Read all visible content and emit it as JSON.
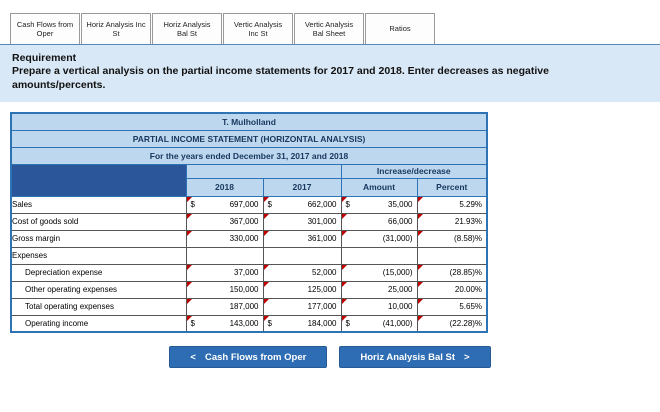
{
  "tabs": [
    "Cash Flows from Oper",
    "Horiz Analysis Inc St",
    "Horiz Analysis Bal St",
    "Vertic Analysis Inc St",
    "Vertic Analysis Bal Sheet",
    "Ratios"
  ],
  "requirement": {
    "title": "Requirement",
    "text": "Prepare a vertical analysis on the partial income statements for 2017 and 2018.  Enter decreases as negative amounts/percents."
  },
  "table": {
    "titles": [
      "T. Mulholland",
      "PARTIAL INCOME STATEMENT (HORIZONTAL ANALYSIS)",
      "For the years ended December 31, 2017 and 2018"
    ],
    "group_header": "Increase/decrease",
    "columns": [
      "2018",
      "2017",
      "Amount",
      "Percent"
    ],
    "dollar_sign": "$",
    "rows": [
      {
        "label": "Sales",
        "dollar": true,
        "v2018": "697,000",
        "v2017": "662,000",
        "amount": "35,000",
        "percent": "5.29%"
      },
      {
        "label": "Cost of goods sold",
        "v2018": "367,000",
        "v2017": "301,000",
        "amount": "66,000",
        "percent": "21.93%"
      },
      {
        "label": "Gross margin",
        "v2018": "330,000",
        "v2017": "361,000",
        "amount": "(31,000)",
        "percent": "(8.58)%"
      },
      {
        "label": "Expenses",
        "section": true
      },
      {
        "label": "Depreciation expense",
        "indent": true,
        "v2018": "37,000",
        "v2017": "52,000",
        "amount": "(15,000)",
        "percent": "(28.85)%"
      },
      {
        "label": "Other operating expenses",
        "indent": true,
        "v2018": "150,000",
        "v2017": "125,000",
        "amount": "25,000",
        "percent": "20.00%"
      },
      {
        "label": "Total operating expenses",
        "indent": true,
        "v2018": "187,000",
        "v2017": "177,000",
        "amount": "10,000",
        "percent": "5.65%"
      },
      {
        "label": "Operating income",
        "indent": true,
        "dollar": true,
        "v2018": "143,000",
        "v2017": "184,000",
        "amount": "(41,000)",
        "percent": "(22.28)%"
      }
    ]
  },
  "buttons": {
    "prev": {
      "chevron": "<",
      "label": "Cash Flows from Oper"
    },
    "next": {
      "label": "Horiz Analysis Bal St",
      "chevron": ">"
    }
  },
  "colors": {
    "header_light": "#bdd7ee",
    "header_dark": "#2b579a",
    "table_border": "#2e74b5",
    "grid_border": "#555555",
    "button_blue": "#2e6db4",
    "requirement_bg": "#d9e8f6",
    "answer_marker_red": "#c00000"
  }
}
